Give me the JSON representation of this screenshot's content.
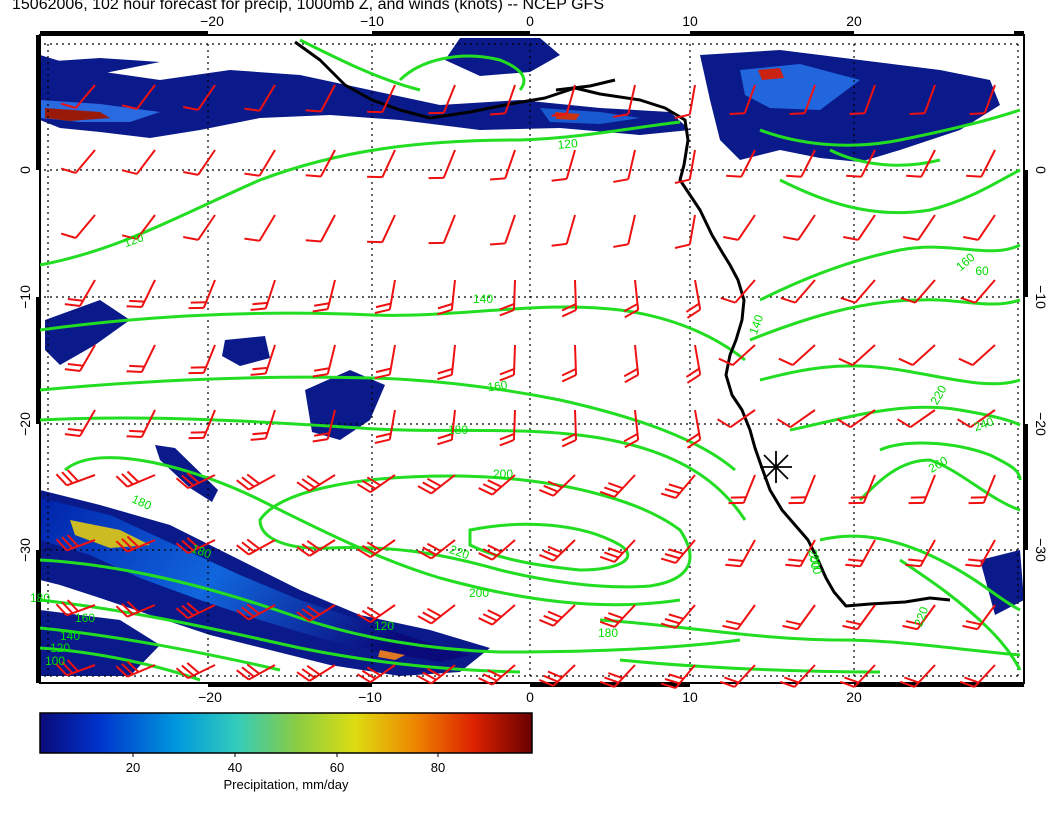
{
  "title": "15062006, 102 hour forecast for precip, 1000mb Z, and winds (knots) -- NCEP GFS",
  "map": {
    "lon_ticks_top": [
      "−20",
      "−10",
      "0",
      "10",
      "20"
    ],
    "lon_ticks_bottom": [
      "−20",
      "−10",
      "0",
      "10",
      "20"
    ],
    "lat_ticks_left": [
      "0",
      "−10",
      "−20",
      "−30"
    ],
    "lat_ticks_right": [
      "0",
      "−10",
      "−20",
      "−30"
    ],
    "contour_labels": [
      "120",
      "120",
      "140",
      "160",
      "180",
      "200",
      "180",
      "180",
      "220",
      "200",
      "120",
      "180",
      "160",
      "140",
      "120",
      "100",
      "180",
      "200",
      "220",
      "240",
      "260",
      "200",
      "220",
      "140",
      "160",
      "60"
    ],
    "colors": {
      "contour": "#22dd22",
      "coast": "#000000",
      "barb": "#ee1111",
      "frame": "#000000"
    }
  },
  "colorbar": {
    "label": "Precipitation, mm/day",
    "ticks": [
      "20",
      "40",
      "60",
      "80"
    ],
    "colors": [
      "#0a0a7a",
      "#0033cc",
      "#0099dd",
      "#33ccbb",
      "#88cc44",
      "#dddd11",
      "#ee8800",
      "#dd2200",
      "#7a0000"
    ]
  }
}
